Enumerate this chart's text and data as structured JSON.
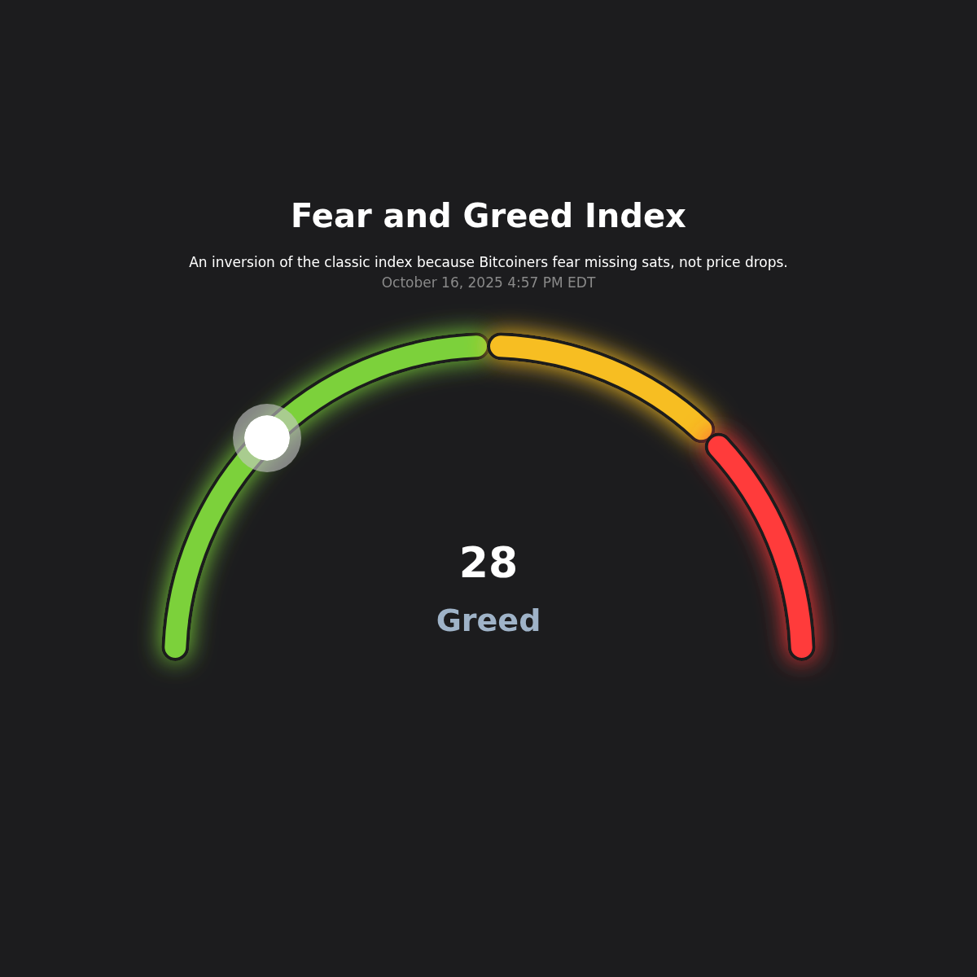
{
  "chart_data": {
    "type": "donut",
    "title": "Fear and Greed Index",
    "subtitle": "An inversion of the classic index because Bitcoiners fear missing sats, not price drops.",
    "categories": [
      null,
      null,
      null
    ],
    "values": [
      50,
      25,
      25
    ],
    "colors": [
      "#7cd13a",
      "#f7be22",
      "#ff3a3a"
    ],
    "annotations": [
      "October 16, 2025 4:57 PM EDT",
      "28",
      "Greed"
    ]
  }
}
